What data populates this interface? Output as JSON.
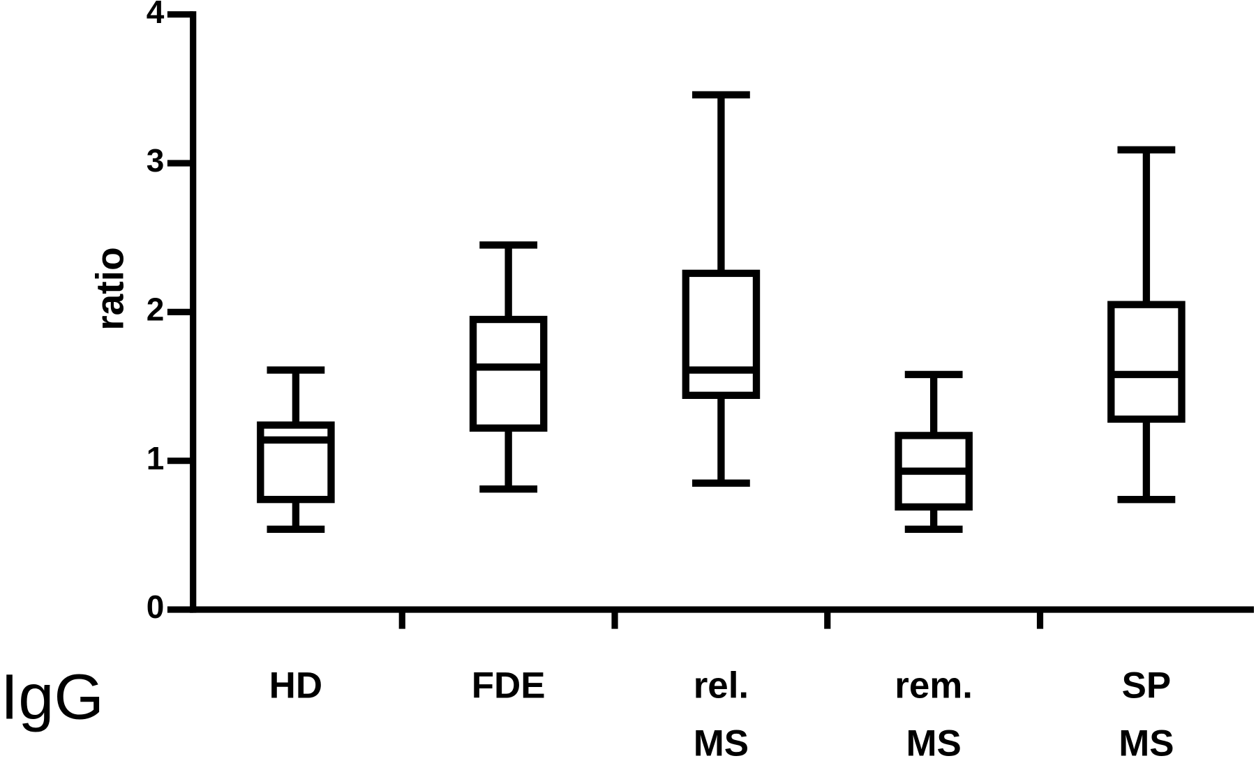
{
  "chart_data": {
    "type": "box",
    "y_label": "ratio",
    "annotation": "IgG",
    "categories": [
      [
        "HD"
      ],
      [
        "FDE"
      ],
      [
        "rel.",
        "MS"
      ],
      [
        "rem.",
        "MS"
      ],
      [
        "SP",
        "MS"
      ]
    ],
    "boxes": [
      {
        "min": 0.54,
        "q1": 0.74,
        "median": 1.14,
        "q3": 1.24,
        "max": 1.61
      },
      {
        "min": 0.81,
        "q1": 1.22,
        "median": 1.63,
        "q3": 1.95,
        "max": 2.45
      },
      {
        "min": 0.85,
        "q1": 1.44,
        "median": 1.61,
        "q3": 2.26,
        "max": 3.46
      },
      {
        "min": 0.54,
        "q1": 0.69,
        "median": 0.93,
        "q3": 1.17,
        "max": 1.58
      },
      {
        "min": 0.74,
        "q1": 1.28,
        "median": 1.58,
        "q3": 2.05,
        "max": 3.09
      }
    ],
    "color": "#000000",
    "ylim": [
      0,
      4
    ],
    "yticks": [
      0,
      1,
      2,
      3,
      4
    ],
    "grid": false
  }
}
